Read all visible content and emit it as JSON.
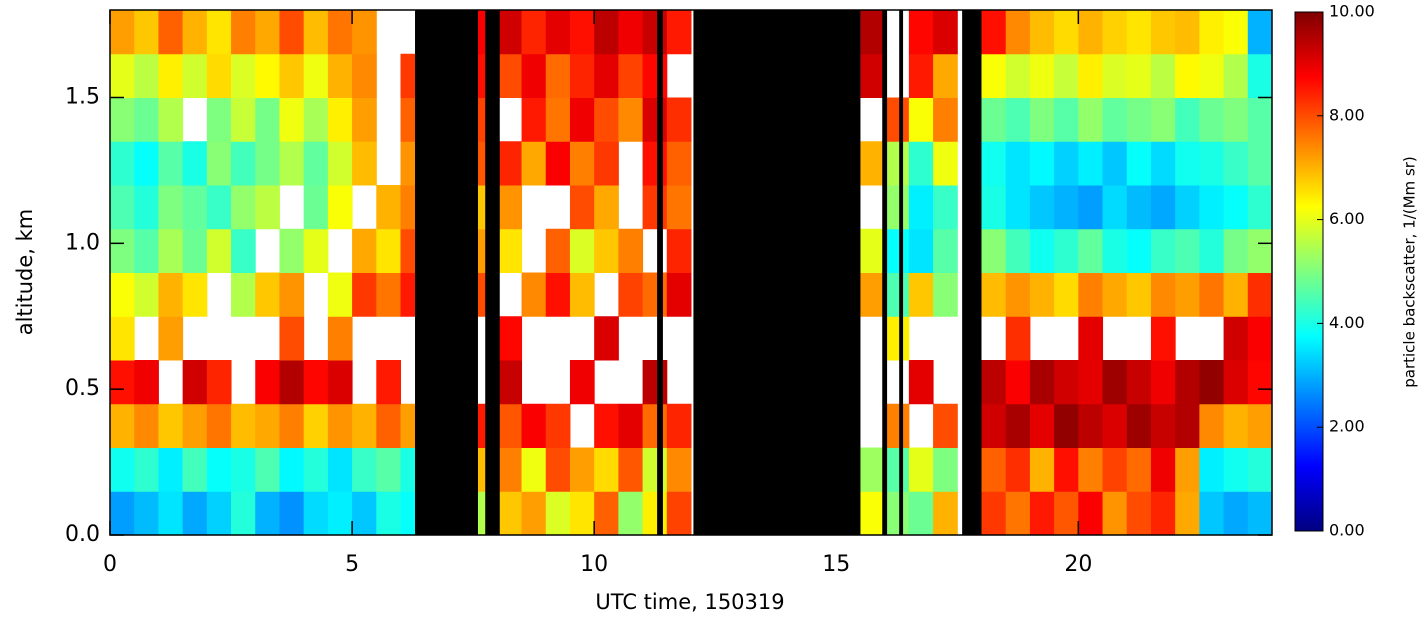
{
  "chart_data": {
    "type": "heatmap",
    "xlabel": "UTC time, 150319",
    "ylabel": "altitude, km",
    "colorbar_label": "particle backscatter, 1/(Mm sr)",
    "xlim": [
      0,
      24
    ],
    "ylim": [
      0,
      1.8
    ],
    "zlim": [
      0,
      10
    ],
    "xticks": [
      0,
      5,
      10,
      15,
      20
    ],
    "yticks": [
      {
        "value": 0,
        "label": "0.0"
      },
      {
        "value": 0.5,
        "label": "0.5"
      },
      {
        "value": 1,
        "label": "1.0"
      },
      {
        "value": 1.5,
        "label": "1.5"
      }
    ],
    "zticks": [
      {
        "value": 0,
        "label": "0.00"
      },
      {
        "value": 2,
        "label": "2.00"
      },
      {
        "value": 4,
        "label": "4.00"
      },
      {
        "value": 6,
        "label": "6.00"
      },
      {
        "value": 8,
        "label": "8.00"
      },
      {
        "value": 10,
        "label": "10.00"
      }
    ],
    "colorscale": [
      "#00007f",
      "#0000ff",
      "#007fff",
      "#00ffff",
      "#7fff7f",
      "#ffff00",
      "#ff7f00",
      "#ff0000",
      "#7f0000"
    ],
    "missing_color": "#ffffff",
    "off_color": "#000000",
    "xbins": [
      0,
      0.5,
      1,
      1.5,
      2,
      2.5,
      3,
      3.5,
      4,
      4.5,
      5,
      5.5,
      6,
      6.5,
      7,
      7.5,
      8,
      8.5,
      9,
      9.5,
      10,
      10.5,
      11,
      11.5,
      12,
      12.5,
      13,
      13.5,
      14,
      14.5,
      15,
      15.5,
      16,
      16.5,
      17,
      17.5,
      18,
      18.5,
      19,
      19.5,
      20,
      20.5,
      21,
      21.5,
      22,
      22.5,
      23,
      23.5,
      24
    ],
    "ybins": [
      0,
      0.15,
      0.3,
      0.45,
      0.6,
      0.75,
      0.9,
      1.05,
      1.2,
      1.35,
      1.5,
      1.65,
      1.8
    ],
    "off_periods": [
      [
        6.3,
        7.6
      ],
      [
        7.75,
        8.05
      ],
      [
        11.3,
        11.42
      ],
      [
        12.05,
        15.5
      ],
      [
        15.95,
        16.05
      ],
      [
        16.3,
        16.38
      ],
      [
        17.6,
        18.0
      ]
    ],
    "z": [
      [
        2.8,
        3.1,
        3.5,
        2.9,
        3.3,
        4.1,
        3.0,
        2.7,
        3.4,
        3.6,
        3.2,
        4.0,
        3.8,
        null,
        null,
        5.5,
        6.8,
        7.2,
        5.9,
        6.5,
        7.8,
        5.2,
        6.4,
        8.1,
        null,
        null,
        null,
        null,
        null,
        null,
        null,
        6.2,
        5.1,
        4.8,
        7.0,
        null,
        8.2,
        7.6,
        8.5,
        7.9,
        8.8,
        7.3,
        8.0,
        8.4,
        7.1,
        3.2,
        2.9,
        3.1
      ],
      [
        3.9,
        4.2,
        3.6,
        4.4,
        3.8,
        4.0,
        4.5,
        3.7,
        4.1,
        3.5,
        4.3,
        4.6,
        4.0,
        null,
        null,
        6.9,
        7.5,
        6.1,
        8.0,
        7.2,
        6.6,
        7.9,
        5.8,
        7.4,
        null,
        null,
        null,
        null,
        null,
        null,
        null,
        5.3,
        4.6,
        6.0,
        5.0,
        null,
        7.8,
        8.3,
        7.0,
        8.6,
        7.5,
        8.1,
        7.7,
        8.9,
        7.2,
        3.6,
        3.9,
        4.1
      ],
      [
        7.0,
        7.4,
        6.8,
        7.2,
        7.6,
        6.9,
        7.1,
        7.5,
        6.7,
        7.3,
        7.0,
        7.8,
        7.2,
        null,
        null,
        8.5,
        7.9,
        8.8,
        8.2,
        null,
        8.6,
        9.0,
        7.7,
        8.4,
        null,
        null,
        null,
        null,
        null,
        null,
        null,
        null,
        7.5,
        null,
        8.0,
        null,
        9.2,
        9.6,
        9.0,
        9.8,
        9.4,
        9.1,
        9.7,
        9.3,
        9.5,
        7.4,
        7.0,
        7.2
      ],
      [
        8.6,
        8.9,
        null,
        9.2,
        8.4,
        null,
        8.8,
        9.5,
        8.7,
        9.1,
        null,
        8.5,
        null,
        null,
        null,
        null,
        9.3,
        null,
        null,
        8.9,
        null,
        null,
        9.4,
        null,
        null,
        null,
        null,
        null,
        null,
        null,
        null,
        null,
        null,
        9.0,
        null,
        null,
        9.4,
        8.8,
        9.6,
        9.2,
        9.0,
        9.7,
        9.3,
        8.9,
        9.5,
        9.8,
        9.1,
        8.7
      ],
      [
        6.5,
        null,
        7.2,
        null,
        null,
        null,
        null,
        8.0,
        null,
        7.5,
        null,
        null,
        null,
        null,
        null,
        null,
        8.7,
        null,
        null,
        null,
        9.1,
        null,
        null,
        null,
        null,
        null,
        null,
        null,
        null,
        null,
        null,
        null,
        6.4,
        null,
        null,
        null,
        null,
        8.3,
        null,
        null,
        9.0,
        null,
        null,
        8.6,
        null,
        null,
        9.2,
        8.8
      ],
      [
        6.2,
        5.8,
        7.0,
        6.5,
        null,
        5.5,
        6.8,
        7.3,
        null,
        6.1,
        8.2,
        7.6,
        8.5,
        null,
        null,
        8.0,
        null,
        7.4,
        8.6,
        6.9,
        null,
        8.1,
        7.7,
        9.0,
        null,
        null,
        null,
        null,
        null,
        null,
        null,
        7.2,
        4.5,
        6.8,
        5.1,
        null,
        6.9,
        7.3,
        7.0,
        6.6,
        7.5,
        7.1,
        6.8,
        7.4,
        7.2,
        7.6,
        7.0,
        8.3
      ],
      [
        5.0,
        4.6,
        5.4,
        4.8,
        5.8,
        4.3,
        null,
        5.2,
        6.0,
        null,
        7.1,
        6.5,
        8.0,
        null,
        null,
        7.2,
        6.5,
        null,
        7.8,
        5.9,
        6.8,
        7.5,
        null,
        8.4,
        null,
        null,
        null,
        null,
        null,
        null,
        null,
        6.0,
        3.8,
        3.5,
        4.6,
        null,
        5.1,
        4.4,
        3.9,
        4.2,
        4.7,
        4.0,
        3.8,
        4.3,
        4.5,
        4.1,
        4.9,
        5.2
      ],
      [
        4.5,
        4.1,
        5.0,
        4.7,
        4.3,
        5.2,
        5.6,
        null,
        4.8,
        6.2,
        null,
        7.0,
        7.5,
        null,
        null,
        6.8,
        7.3,
        null,
        null,
        8.0,
        7.1,
        null,
        8.2,
        7.6,
        null,
        null,
        null,
        null,
        null,
        null,
        null,
        null,
        5.2,
        3.6,
        4.3,
        null,
        4.0,
        3.5,
        3.2,
        3.0,
        2.8,
        3.4,
        3.1,
        2.9,
        3.3,
        3.6,
        3.8,
        4.2
      ],
      [
        4.2,
        3.8,
        4.6,
        4.0,
        5.1,
        4.4,
        4.9,
        5.5,
        4.7,
        5.8,
        6.9,
        null,
        7.3,
        null,
        null,
        7.9,
        8.4,
        7.1,
        8.8,
        7.5,
        8.2,
        null,
        8.6,
        7.8,
        null,
        null,
        null,
        null,
        null,
        null,
        null,
        7.0,
        5.5,
        4.2,
        6.1,
        null,
        3.9,
        3.5,
        3.7,
        3.3,
        3.6,
        3.2,
        3.8,
        3.4,
        3.9,
        4.0,
        4.3,
        4.6
      ],
      [
        5.1,
        4.8,
        5.5,
        null,
        5.0,
        5.7,
        4.9,
        6.1,
        5.4,
        6.4,
        7.2,
        null,
        7.8,
        null,
        null,
        8.1,
        null,
        8.5,
        7.6,
        8.9,
        8.0,
        7.4,
        9.1,
        8.3,
        null,
        null,
        null,
        null,
        null,
        null,
        null,
        null,
        8.0,
        6.2,
        7.5,
        null,
        4.8,
        4.5,
        5.0,
        4.6,
        5.2,
        4.7,
        4.9,
        5.1,
        4.4,
        4.8,
        5.0,
        4.6
      ],
      [
        6.0,
        5.6,
        6.4,
        5.8,
        6.6,
        5.9,
        6.3,
        6.8,
        6.1,
        7.0,
        7.4,
        null,
        8.2,
        null,
        null,
        8.6,
        8.0,
        8.9,
        7.7,
        8.4,
        9.0,
        8.1,
        8.7,
        null,
        null,
        null,
        null,
        null,
        null,
        null,
        null,
        9.2,
        null,
        8.5,
        7.1,
        null,
        6.2,
        5.8,
        6.1,
        5.7,
        6.4,
        5.9,
        6.0,
        5.6,
        6.3,
        6.1,
        5.5,
        4.0
      ],
      [
        7.2,
        6.8,
        7.8,
        7.0,
        6.5,
        7.5,
        7.1,
        8.0,
        6.9,
        7.6,
        7.3,
        null,
        null,
        null,
        null,
        8.8,
        9.2,
        8.4,
        9.0,
        8.6,
        9.4,
        8.9,
        9.3,
        8.5,
        null,
        null,
        null,
        null,
        null,
        null,
        null,
        9.5,
        null,
        8.7,
        9.1,
        null,
        8.6,
        7.4,
        6.9,
        6.6,
        7.0,
        6.7,
        6.5,
        6.8,
        6.9,
        6.4,
        6.2,
        3.0
      ]
    ]
  }
}
